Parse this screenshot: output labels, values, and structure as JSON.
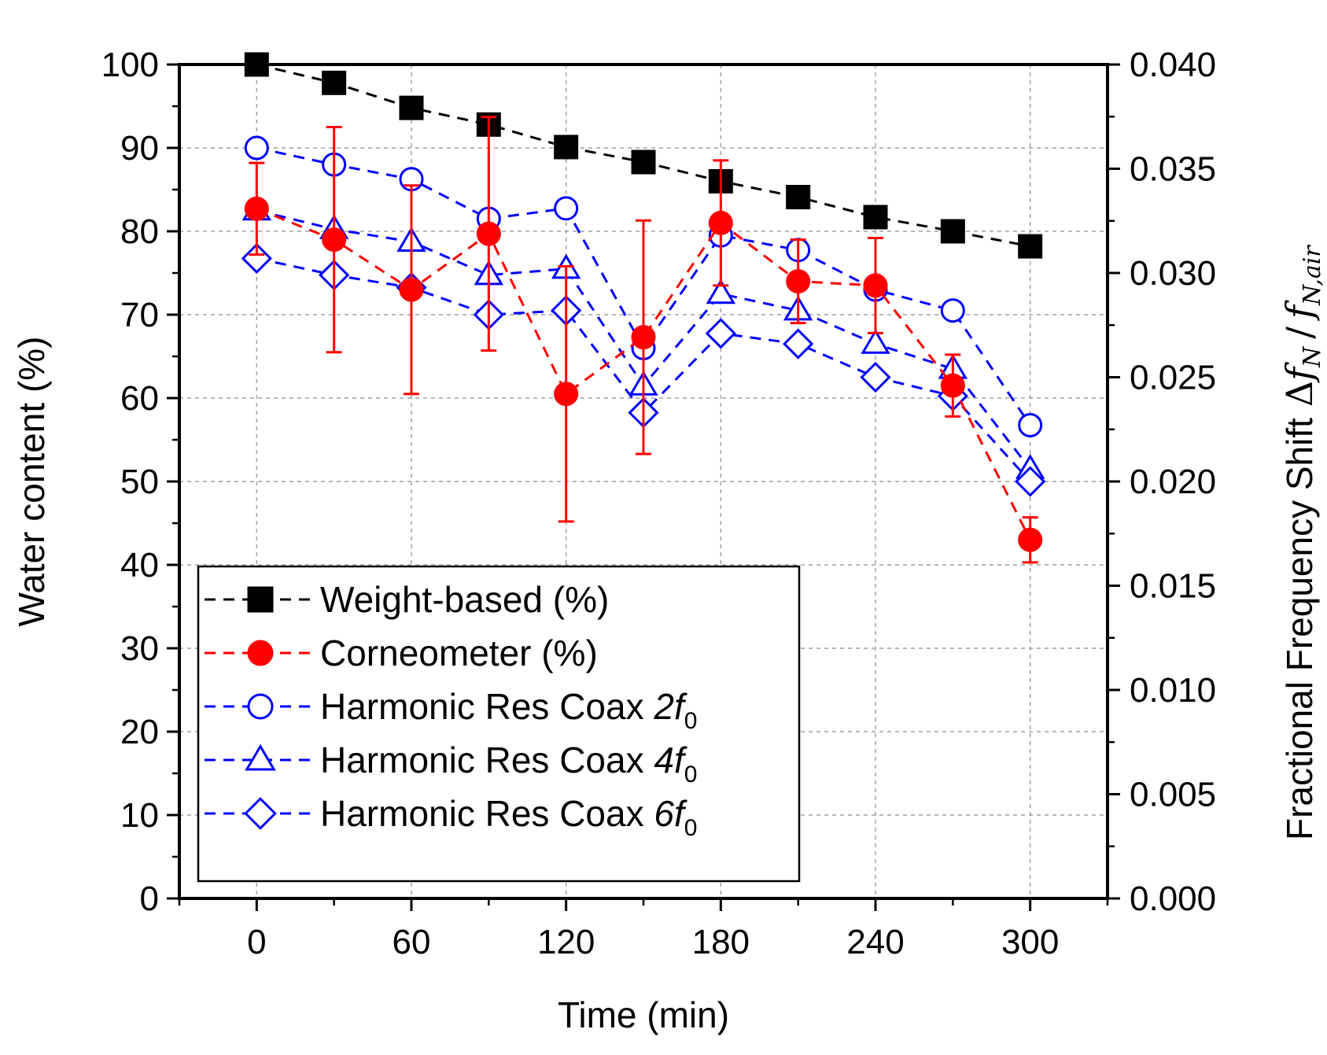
{
  "chart_data": {
    "type": "line",
    "xlabel": "Time (min)",
    "ylabel": "Water content (%)",
    "y2label_text": "Fractional Frequency Shift",
    "y2label_math": {
      "delta": "Δ",
      "f": "f",
      "sub_n": "N",
      "slash": "/",
      "sub_n_air": "N,air"
    },
    "xlim": [
      -30,
      330
    ],
    "ylim": [
      0,
      100
    ],
    "y2lim": [
      0,
      0.04
    ],
    "xticks": [
      0,
      60,
      120,
      180,
      240,
      300
    ],
    "xtick_labels": [
      "0",
      "60",
      "120",
      "180",
      "240",
      "300"
    ],
    "yticks": [
      0,
      10,
      20,
      30,
      40,
      50,
      60,
      70,
      80,
      90,
      100
    ],
    "ytick_labels": [
      "0",
      "10",
      "20",
      "30",
      "40",
      "50",
      "60",
      "70",
      "80",
      "90",
      "100"
    ],
    "y2ticks": [
      0,
      0.005,
      0.01,
      0.015,
      0.02,
      0.025,
      0.03,
      0.035,
      0.04
    ],
    "y2tick_labels": [
      "0.000",
      "0.005",
      "0.010",
      "0.015",
      "0.020",
      "0.025",
      "0.030",
      "0.035",
      "0.040"
    ],
    "grid": true,
    "legend_position": "bottom-left",
    "x": [
      0,
      30,
      60,
      90,
      120,
      150,
      180,
      210,
      240,
      270,
      300
    ],
    "series": [
      {
        "name": "Weight-based (%)",
        "legend_label": "Weight-based (%)",
        "color": "#000000",
        "marker": "square",
        "filled": true,
        "axis": "left",
        "values": [
          100,
          97.8,
          94.8,
          92.8,
          90.1,
          88.3,
          86.0,
          84.1,
          81.7,
          80.0,
          78.2
        ]
      },
      {
        "name": "Corneometer (%)",
        "legend_label": "Corneometer (%)",
        "color": "#ff0000",
        "marker": "circle",
        "filled": true,
        "axis": "left",
        "values": [
          82.7,
          79.0,
          73.0,
          79.7,
          60.5,
          67.3,
          81.0,
          74.0,
          73.5,
          61.5,
          43.0
        ],
        "error": [
          5.5,
          13.5,
          12.5,
          14.0,
          15.3,
          14.0,
          7.5,
          5.0,
          5.7,
          3.7,
          2.7
        ]
      },
      {
        "name": "Harmonic Res Coax 2f0",
        "legend_label": "Harmonic Res Coax ",
        "legend_italic": "2f",
        "legend_sub": "0",
        "color": "#0000ff",
        "marker": "circle",
        "filled": false,
        "axis": "right",
        "values": [
          0.036,
          0.0352,
          0.0345,
          0.0326,
          0.0331,
          0.0264,
          0.0318,
          0.0311,
          0.0292,
          0.0282,
          0.0227
        ]
      },
      {
        "name": "Harmonic Res Coax 4f0",
        "legend_label": "Harmonic Res Coax ",
        "legend_italic": "4f",
        "legend_sub": "0",
        "color": "#0000ff",
        "marker": "triangle",
        "filled": false,
        "axis": "right",
        "values": [
          0.033,
          0.0321,
          0.0315,
          0.0299,
          0.0302,
          0.0246,
          0.029,
          0.0282,
          0.0266,
          0.0254,
          0.0206
        ]
      },
      {
        "name": "Harmonic Res Coax 6f0",
        "legend_label": "Harmonic Res Coax ",
        "legend_italic": "6f",
        "legend_sub": "0",
        "color": "#0000ff",
        "marker": "diamond",
        "filled": false,
        "axis": "right",
        "values": [
          0.0307,
          0.0299,
          0.0293,
          0.028,
          0.0282,
          0.0233,
          0.0271,
          0.0266,
          0.025,
          0.0241,
          0.02
        ]
      }
    ]
  }
}
